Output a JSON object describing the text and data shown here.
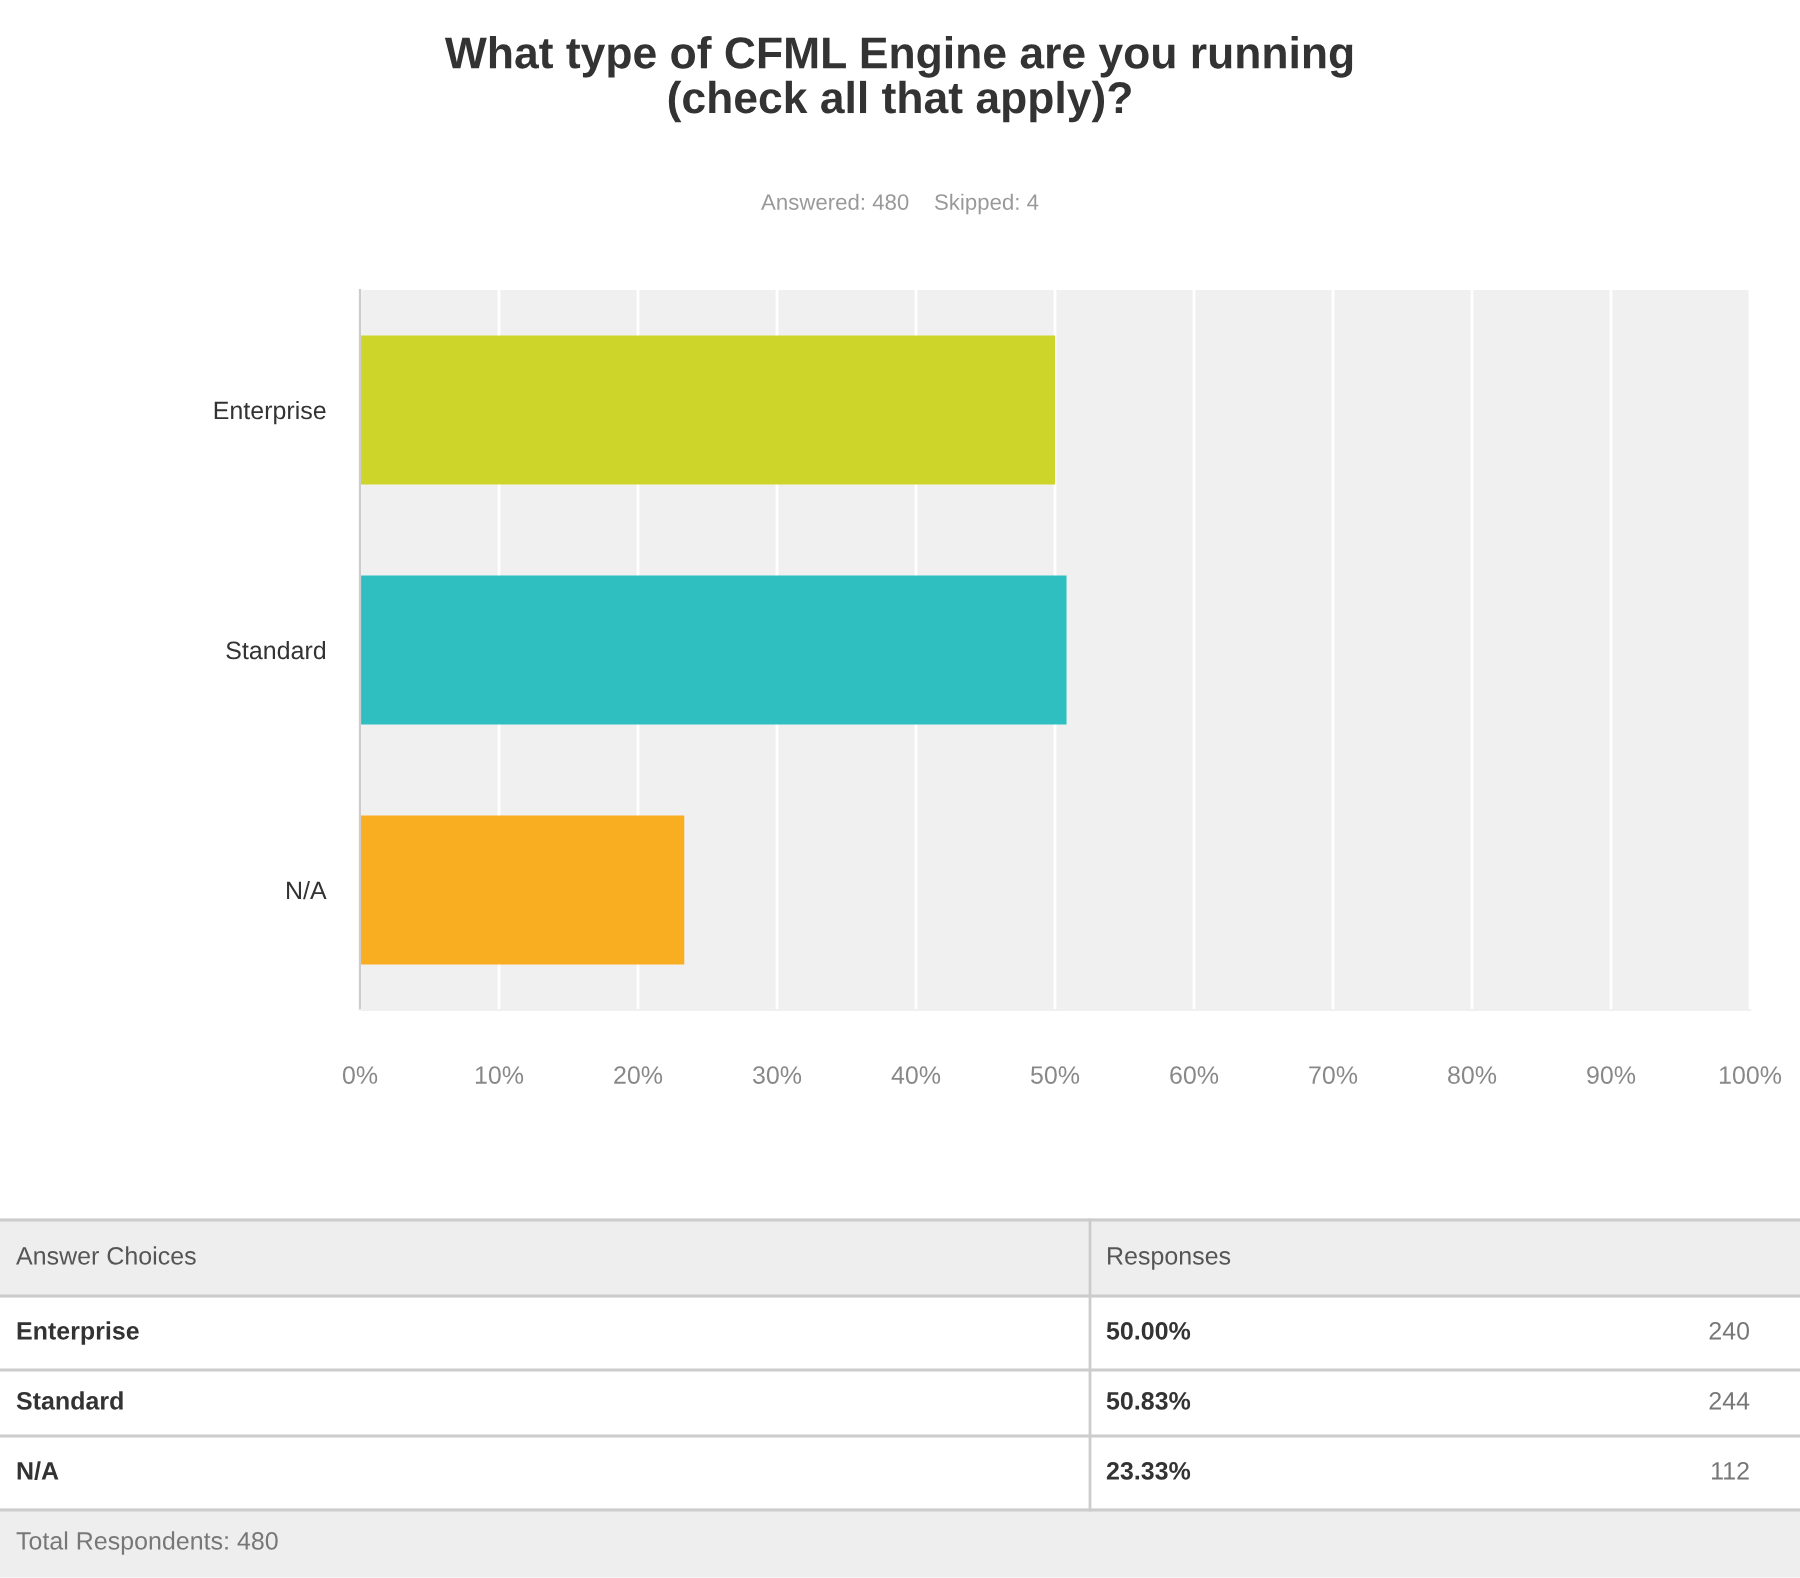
{
  "chart_data": {
    "type": "bar",
    "orientation": "horizontal",
    "title": "What type of CFML Engine are you running\n(check all that apply)?",
    "subtitle": "Answered: 480    Skipped: 4",
    "categories": [
      "Enterprise",
      "Standard",
      "N/A"
    ],
    "values": [
      50.0,
      50.83,
      23.33
    ],
    "colors": [
      "#cdd52a",
      "#2fbfc0",
      "#f9ae22"
    ],
    "xlim": [
      0,
      100
    ],
    "xticks": [
      {
        "value": 0,
        "label": "0%"
      },
      {
        "value": 10,
        "label": "10%"
      },
      {
        "value": 20,
        "label": "20%"
      },
      {
        "value": 30,
        "label": "30%"
      },
      {
        "value": 40,
        "label": "40%"
      },
      {
        "value": 50,
        "label": "50%"
      },
      {
        "value": 60,
        "label": "60%"
      },
      {
        "value": 70,
        "label": "70%"
      },
      {
        "value": 80,
        "label": "80%"
      },
      {
        "value": 90,
        "label": "90%"
      },
      {
        "value": 100,
        "label": "100%"
      }
    ],
    "grid": "x",
    "annotations": [
      "Answer Choices",
      "Responses",
      "50.00%",
      "240",
      "50.83%",
      "244",
      "23.33%",
      "112",
      "Total Respondents: 480"
    ]
  }
}
